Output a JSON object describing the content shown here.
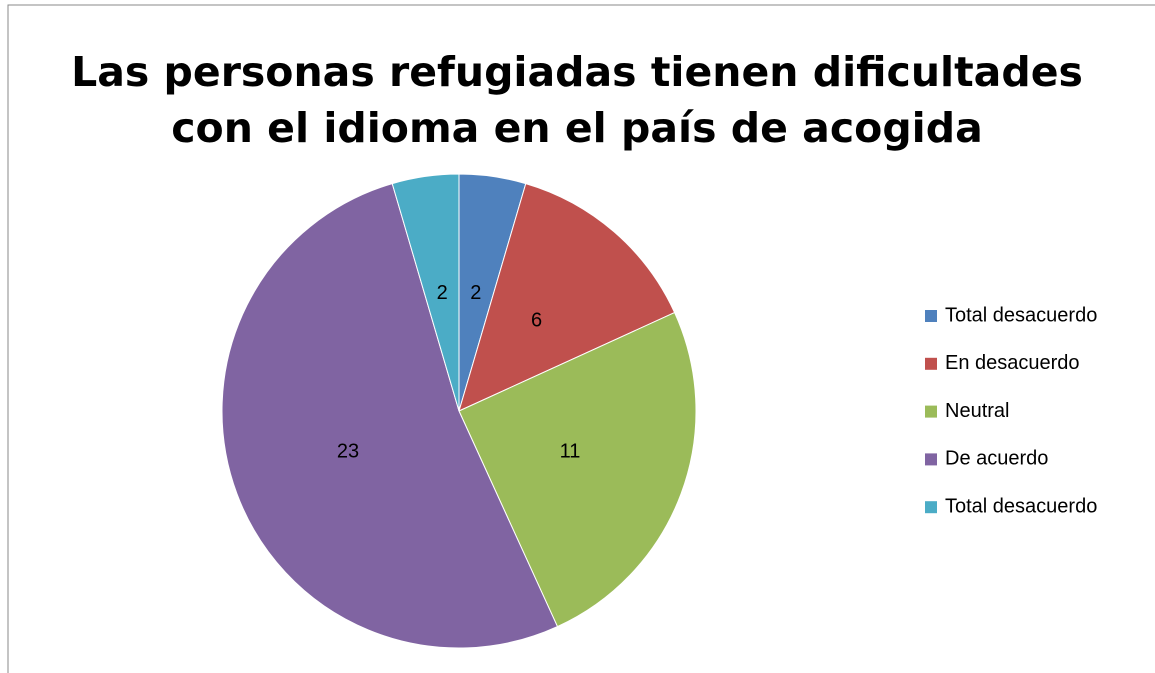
{
  "chart_data": {
    "type": "pie",
    "title": [
      "Las personas refugiadas tienen dificultades",
      "con el idioma en el país de acogida"
    ],
    "categories": [
      "Total desacuerdo",
      "En desacuerdo",
      "Neutral",
      "De acuerdo",
      "Total desacuerdo"
    ],
    "values": [
      2,
      6,
      11,
      23,
      2
    ],
    "colors": [
      "#4f81bd",
      "#c0504d",
      "#9bbb59",
      "#8064a2",
      "#4bacc6"
    ],
    "legend": "right"
  }
}
